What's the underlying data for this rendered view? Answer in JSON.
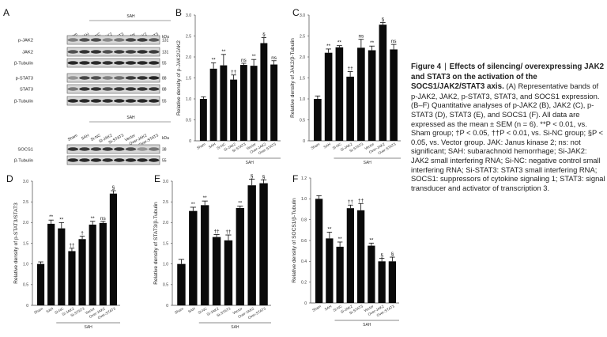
{
  "figure": {
    "panel_letters": [
      "A",
      "B",
      "C",
      "D",
      "E",
      "F"
    ],
    "caption_label": "Figure 4",
    "caption_separator": "|",
    "caption_title": "Effects of silencing/ overexpressing JAK2 and STAT3 on the activation of the SOCS1/JAK2/STAT3 axis.",
    "caption_body": "(A) Representative bands of p-JAK2, JAK2, p-STAT3, STAT3, and SOCS1 expression. (B–F) Quantitative analyses of p-JAK2 (B), JAK2 (C), p-STAT3 (D), STAT3 (E), and SOCS1 (F). All data are expressed as the mean ± SEM (n = 6). **P < 0.01, vs. Sham group; †P < 0.05, ††P < 0.01, vs. Si-NC group; §P < 0.05, vs. Vector group. JAK: Janus kinase 2; ns: not significant; SAH: subarachnoid hemorrhage; Si-JAK2: JAK2 small interfering RNA; Si-NC: negative control small interfering RNA; Si-STAT3: STAT3 small interfering RNA; SOCS1: suppressors of cytokine signaling 1; STAT3: signal transducer and activator of transcription 3."
  },
  "blots": {
    "group_label": "SAH",
    "kda_label": "kDa",
    "lanes": [
      "Sham",
      "SAH",
      "Si-NC",
      "Si-JAK2",
      "Si-STAT3",
      "Vector",
      "Over-JAK2",
      "Over-STAT3"
    ],
    "rows_top": [
      {
        "name": "p-JAK2",
        "kda": "131"
      },
      {
        "name": "JAK2",
        "kda": "131"
      },
      {
        "name": "β-Tubulin",
        "kda": "55"
      },
      {
        "name": "p-STAT3",
        "kda": "88"
      },
      {
        "name": "STAT3",
        "kda": "88"
      },
      {
        "name": "β-Tubulin",
        "kda": "55"
      }
    ],
    "rows_bottom": [
      {
        "name": "SOCS1",
        "kda": "38"
      },
      {
        "name": "β-Tubulin",
        "kda": "55"
      }
    ]
  },
  "chart_data": [
    {
      "panel": "B",
      "type": "bar",
      "ylabel": "Relative density of p-JAK2/JAK2",
      "ylim": [
        0,
        3
      ],
      "ticks": [
        0,
        0.5,
        1,
        1.5,
        2,
        2.5,
        3
      ],
      "tick_labels": [
        "0",
        "0.5",
        "1.0",
        "1.5",
        "2.0",
        "2.5",
        "3.0"
      ],
      "categories": [
        "Sham",
        "SAH",
        "Si-NC",
        "Si-JAK2",
        "Si-STAT3",
        "Vector",
        "Over-JAK2",
        "Over-STAT3"
      ],
      "values": [
        1.0,
        1.72,
        1.8,
        1.46,
        1.81,
        1.79,
        2.33,
        1.82
      ],
      "errors": [
        0.05,
        0.14,
        0.26,
        0.11,
        0.04,
        0.15,
        0.13,
        0.09
      ],
      "annotations": [
        "",
        "**",
        "**",
        "††",
        "ns",
        "**",
        "§",
        "ns"
      ],
      "group_label": "SAH"
    },
    {
      "panel": "C",
      "type": "bar",
      "ylabel": "Relative density of JAK2/β-Tubulin",
      "ylim": [
        0,
        3
      ],
      "ticks": [
        0,
        0.5,
        1,
        1.5,
        2,
        2.5,
        3
      ],
      "tick_labels": [
        "0",
        "0.5",
        "1.0",
        "1.5",
        "2.0",
        "2.5",
        "3.0"
      ],
      "categories": [
        "Sham",
        "SAH",
        "Si-NC",
        "Si-JAK2",
        "Si-STAT3",
        "Vector",
        "Over-JAK2",
        "Over-STAT3"
      ],
      "values": [
        1.0,
        2.1,
        2.23,
        1.53,
        2.22,
        2.16,
        2.77,
        2.18
      ],
      "errors": [
        0.07,
        0.09,
        0.04,
        0.12,
        0.2,
        0.1,
        0.05,
        0.12
      ],
      "annotations": [
        "",
        "**",
        "**",
        "††",
        "ns",
        "**",
        "§",
        "ns"
      ],
      "group_label": "SAH"
    },
    {
      "panel": "D",
      "type": "bar",
      "ylabel": "Relative density of p-STAT3/STAT3",
      "ylim": [
        0,
        3
      ],
      "ticks": [
        0,
        0.5,
        1,
        1.5,
        2,
        2.5,
        3
      ],
      "tick_labels": [
        "0",
        "0.5",
        "1.0",
        "1.5",
        "2.0",
        "2.5",
        "3.0"
      ],
      "categories": [
        "Sham",
        "SAH",
        "Si-NC",
        "Si-JAK2",
        "Si-STAT3",
        "Vector",
        "Over-JAK2",
        "Over-STAT3"
      ],
      "values": [
        1.0,
        1.97,
        1.86,
        1.31,
        1.6,
        1.95,
        1.99,
        2.7
      ],
      "errors": [
        0.05,
        0.09,
        0.14,
        0.07,
        0.07,
        0.08,
        0.04,
        0.07
      ],
      "annotations": [
        "",
        "**",
        "**",
        "††",
        "†",
        "**",
        "ns",
        "§"
      ],
      "group_label": "SAH"
    },
    {
      "panel": "E",
      "type": "bar",
      "ylabel": "Relative density of STAT3/β-Tubulin",
      "ylim": [
        0,
        3
      ],
      "ticks": [
        0,
        0.5,
        1,
        1.5,
        2,
        2.5,
        3
      ],
      "tick_labels": [
        "0",
        "0.5",
        "1.0",
        "1.5",
        "2.0",
        "2.5",
        "3.0"
      ],
      "categories": [
        "Sham",
        "SAH",
        "Si-NC",
        "Si-JAK2",
        "Si-STAT3",
        "Vector",
        "Over-JAK2",
        "Over-STAT3"
      ],
      "values": [
        1.0,
        2.28,
        2.42,
        1.65,
        1.57,
        2.35,
        2.9,
        2.95
      ],
      "errors": [
        0.11,
        0.09,
        0.1,
        0.06,
        0.13,
        0.05,
        0.15,
        0.08
      ],
      "annotations": [
        "",
        "**",
        "**",
        "††",
        "††",
        "**",
        "§",
        "§"
      ],
      "group_label": "SAH"
    },
    {
      "panel": "F",
      "type": "bar",
      "ylabel": "Relative density of SOCS1/β-Tubulin",
      "ylim": [
        0,
        1.2
      ],
      "ticks": [
        0,
        0.2,
        0.4,
        0.6,
        0.8,
        1.0,
        1.2
      ],
      "tick_labels": [
        "0",
        "0.2",
        "0.4",
        "0.6",
        "0.8",
        "1.0",
        "1.2"
      ],
      "categories": [
        "Sham",
        "SAH",
        "Si-NC",
        "Si-JAK2",
        "Si-STAT3",
        "Vector",
        "Over-JAK2",
        "Over-STAT3"
      ],
      "values": [
        1.0,
        0.62,
        0.54,
        0.91,
        0.89,
        0.55,
        0.4,
        0.4
      ],
      "errors": [
        0.03,
        0.06,
        0.045,
        0.03,
        0.065,
        0.025,
        0.03,
        0.04
      ],
      "annotations": [
        "",
        "**",
        "**",
        "††",
        "††",
        "**",
        "§",
        "§"
      ],
      "group_label": "SAH"
    }
  ]
}
